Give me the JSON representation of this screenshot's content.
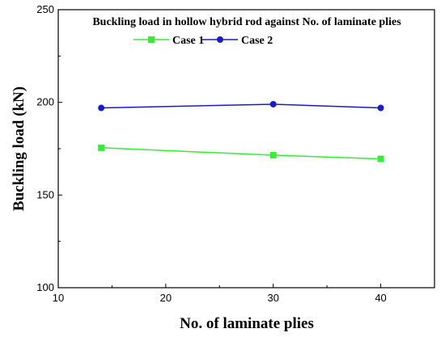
{
  "chart_data": {
    "type": "line",
    "title": "Buckling load in hollow hybrid rod against No. of laminate plies",
    "xlabel": "No. of laminate plies",
    "ylabel": "Buckling load (kN)",
    "xlim": [
      10,
      45
    ],
    "ylim": [
      100,
      250
    ],
    "x_ticks": [
      10,
      20,
      30,
      40
    ],
    "y_ticks": [
      100,
      150,
      200,
      250
    ],
    "x": [
      14,
      30,
      40
    ],
    "series": [
      {
        "name": "Case 1",
        "color": "#33ee33",
        "marker": "square",
        "values": [
          175.5,
          171.5,
          169.5
        ]
      },
      {
        "name": "Case 2",
        "color": "#1a1acc",
        "marker": "circle",
        "values": [
          197,
          199,
          197
        ]
      }
    ],
    "legend": "top-center",
    "grid": false
  }
}
